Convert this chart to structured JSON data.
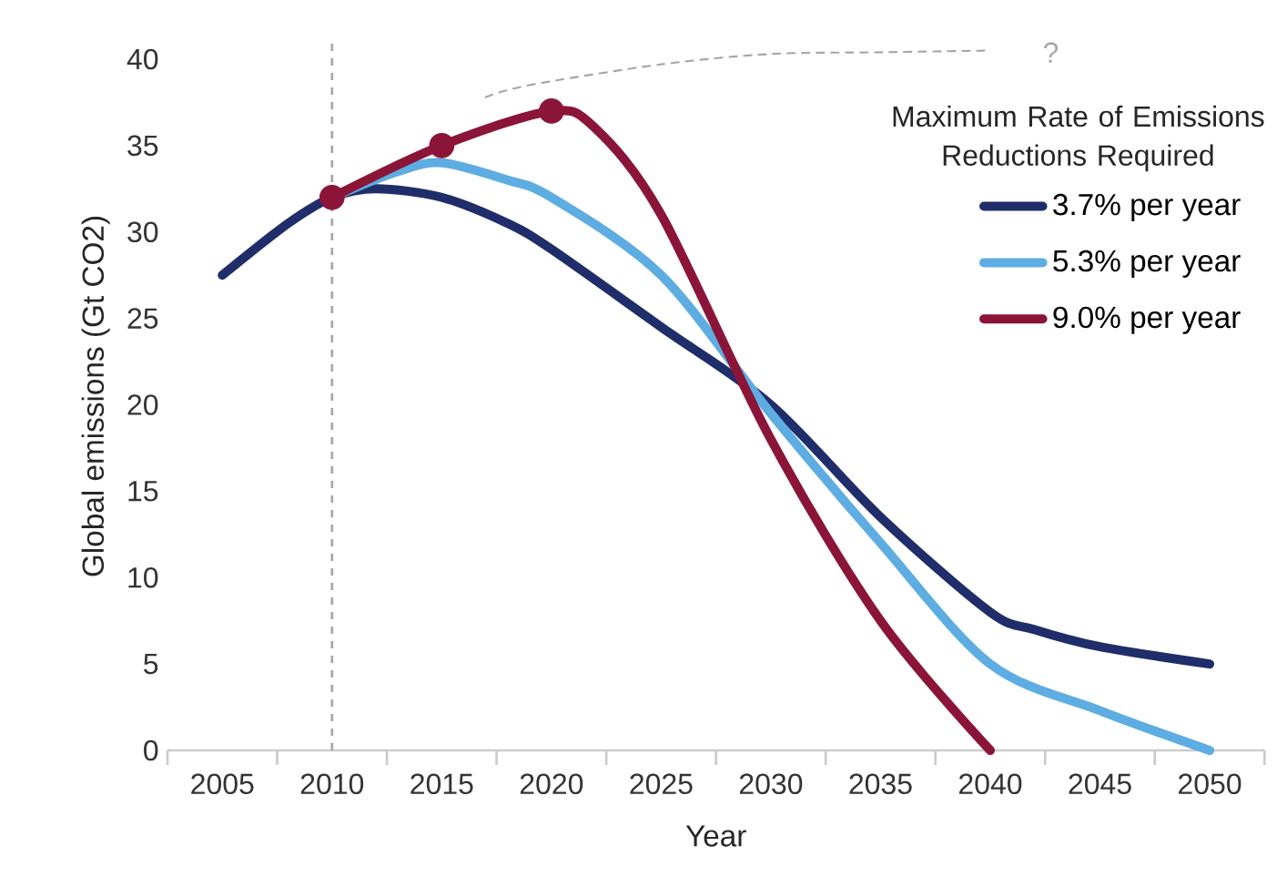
{
  "chart_data": {
    "type": "line",
    "xlabel": "Year",
    "ylabel": "Global emissions (Gt CO2)",
    "legend_title": "Maximum Rate of Emissions Reductions Required",
    "xlim": [
      2002.5,
      2052.5
    ],
    "ylim": [
      0,
      41
    ],
    "xticks": [
      2005,
      2010,
      2015,
      2020,
      2025,
      2030,
      2035,
      2040,
      2045,
      2050,
      {
        "value": 2002.5,
        "label": null
      },
      {
        "value": 2007.5,
        "label": null
      },
      {
        "value": 2012.5,
        "label": null
      },
      {
        "value": 2017.5,
        "label": null
      },
      {
        "value": 2022.5,
        "label": null
      },
      {
        "value": 2027.5,
        "label": null
      },
      {
        "value": 2032.5,
        "label": null
      },
      {
        "value": 2037.5,
        "label": null
      },
      {
        "value": 2042.5,
        "label": null
      },
      {
        "value": 2047.5,
        "label": null
      },
      {
        "value": 2052.5,
        "label": null
      }
    ],
    "yticks": [
      0,
      5,
      10,
      15,
      20,
      25,
      30,
      35,
      40
    ],
    "legend": "right",
    "grid": false,
    "series": [
      {
        "name": "3.7% per year",
        "color": "#1f2d6b",
        "x": [
          2005,
          2008,
          2010,
          2012,
          2015,
          2018,
          2020,
          2025,
          2030,
          2035,
          2040,
          2042,
          2045,
          2050
        ],
        "values": [
          27.5,
          30.5,
          32,
          32.5,
          32,
          30.5,
          29,
          24.5,
          20,
          13.5,
          8,
          7,
          6,
          5
        ]
      },
      {
        "name": "5.3% per year",
        "color": "#5dade2",
        "x": [
          2010,
          2013,
          2015,
          2018,
          2020,
          2025,
          2030,
          2035,
          2040,
          2045,
          2050
        ],
        "values": [
          32,
          33.5,
          34,
          33,
          32,
          27.5,
          19.5,
          12,
          5,
          2.3,
          0
        ]
      },
      {
        "name": "9.0% per year",
        "color": "#8b1538",
        "x": [
          2010,
          2015,
          2020,
          2022,
          2025,
          2030,
          2035,
          2040
        ],
        "values": [
          32,
          35,
          37,
          36,
          31,
          18,
          7.5,
          0
        ]
      },
      {
        "type": "scatter",
        "marker": "circle",
        "color": "#8b1538",
        "x": [
          2010,
          2015,
          2020
        ],
        "values": [
          32,
          35,
          37
        ]
      },
      {
        "color": "#a6a6a6",
        "line_style": "dashed",
        "x": [
          2017,
          2019,
          2025,
          2030,
          2035,
          2040
        ],
        "values": [
          37.8,
          38.5,
          39.7,
          40.3,
          40.4,
          40.5
        ]
      }
    ],
    "ref_lines": [
      {
        "axis": "x",
        "value": 2010,
        "color": "#a6a6a6",
        "line_style": "dashed"
      }
    ],
    "annotations": [
      "?"
    ]
  }
}
